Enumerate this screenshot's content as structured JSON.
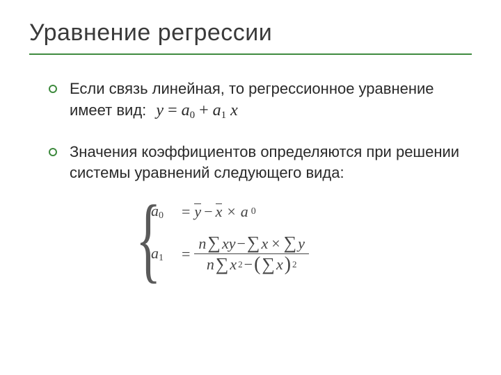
{
  "title": "Уравнение регрессии",
  "bullets": [
    {
      "text": "Если связь линейная, то регрессионное уравнение имеет вид:",
      "equation": {
        "y": "y",
        "eq": "=",
        "a": "a",
        "s0": "0",
        "plus": "+",
        "s1": "1",
        "x": "x"
      }
    },
    {
      "text": "Значения коэффициентов определяются при решении системы уравнений следующего вида:"
    }
  ],
  "system": {
    "row1": {
      "lhs": "a",
      "sub": "0",
      "eq": "=",
      "ybar": "y",
      "minus": "−",
      "xbar": "x",
      "mult": "×",
      "a": "a",
      "asub": "0"
    },
    "row2": {
      "lhs": "a",
      "sub": "1",
      "eq": "=",
      "num": {
        "n": "n",
        "sig1": "∑",
        "xy": "xy",
        "minus": "−",
        "sig2": "∑",
        "x": "x",
        "mult": "×",
        "sig3": "∑",
        "y": "y"
      },
      "den": {
        "n": "n",
        "sig1": "∑",
        "x": "x",
        "sq1": "2",
        "minus": "−",
        "lp": "(",
        "sig2": "∑",
        "x2": "x",
        "rp": ")",
        "sq2": "2"
      }
    }
  },
  "colors": {
    "accent": "#3e8a3e",
    "text": "#2a2a2a",
    "title": "#3a3a3a",
    "math": "#444444",
    "bg": "#ffffff"
  },
  "fonts": {
    "body": "Verdana",
    "math": "Times New Roman",
    "title_size": 34,
    "bullet_size": 22,
    "math_size": 22
  }
}
